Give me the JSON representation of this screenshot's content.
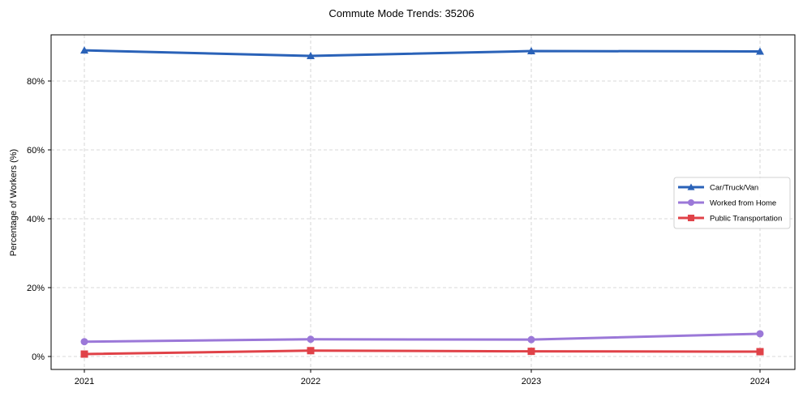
{
  "chart_data": {
    "type": "line",
    "title": "Commute Mode Trends: 35206",
    "xlabel": "",
    "ylabel": "Percentage of Workers (%)",
    "categories": [
      "2021",
      "2022",
      "2023",
      "2024"
    ],
    "ylim": [
      -4,
      93
    ],
    "yticks": [
      0,
      20,
      40,
      60,
      80
    ],
    "ytick_labels": [
      "0%",
      "20%",
      "40%",
      "60%",
      "80%"
    ],
    "grid": true,
    "legend_position": "center right",
    "series": [
      {
        "name": "Car/Truck/Van",
        "color": "#2a62b8",
        "marker": "triangle",
        "values": [
          88.9,
          87.3,
          88.7,
          88.6
        ]
      },
      {
        "name": "Worked from Home",
        "color": "#9b78d8",
        "marker": "circle",
        "values": [
          4.3,
          5.0,
          4.9,
          6.6
        ]
      },
      {
        "name": "Public Transportation",
        "color": "#e04248",
        "marker": "square",
        "values": [
          0.7,
          1.7,
          1.5,
          1.4
        ]
      }
    ]
  }
}
